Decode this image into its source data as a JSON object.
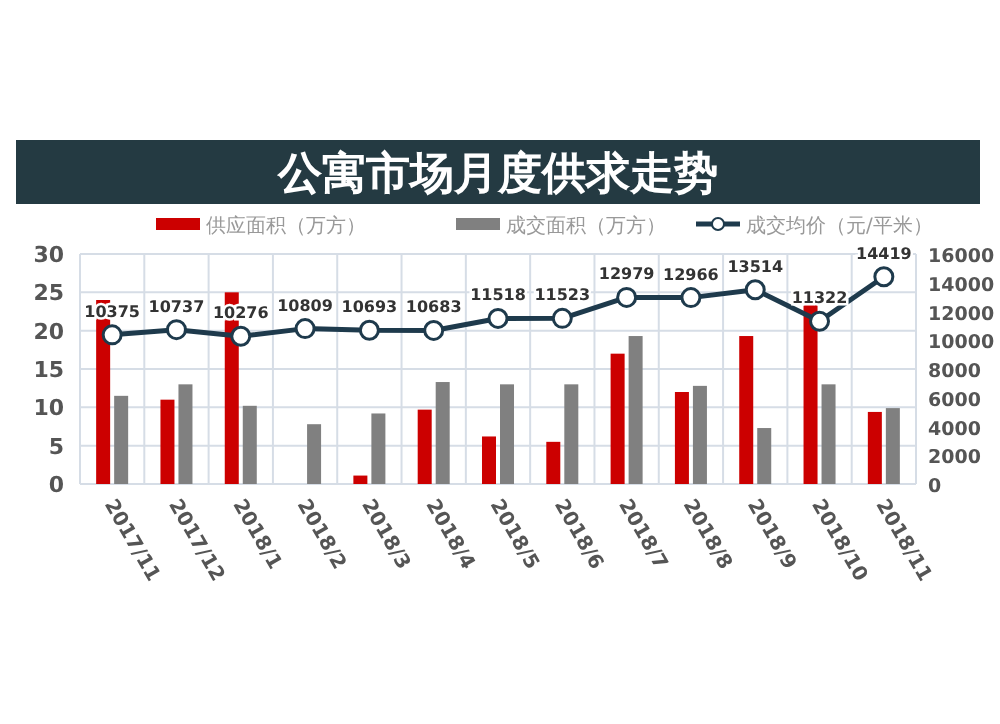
{
  "chart_data": {
    "type": "bar",
    "title": "公寓市场月度供求走势",
    "categories": [
      "2017/11",
      "2017/12",
      "2018/1",
      "2018/2",
      "2018/3",
      "2018/4",
      "2018/5",
      "2018/6",
      "2018/7",
      "2018/8",
      "2018/9",
      "2018/10",
      "2018/11"
    ],
    "series": [
      {
        "name": "供应面积（万方）",
        "color": "#cc0000",
        "values": [
          24,
          11,
          25,
          0,
          1.1,
          9.7,
          6.2,
          5.5,
          17,
          12,
          19.3,
          24,
          9.4
        ]
      },
      {
        "name": "成交面积（万方）",
        "color": "#808080",
        "values": [
          11.5,
          13,
          10.2,
          7.8,
          9.2,
          13.3,
          13,
          13,
          19.3,
          12.8,
          7.3,
          13,
          9.9
        ]
      },
      {
        "name": "成交均价（元/平米）",
        "type": "line",
        "axis": "y2",
        "color": "#1e3a4c",
        "marker": "circle",
        "values": [
          10375,
          10737,
          10276,
          10809,
          10693,
          10683,
          11518,
          11523,
          12979,
          12966,
          13514,
          11322,
          14419
        ],
        "value_labels": [
          "10375",
          "10737",
          "10276",
          "10809",
          "10693",
          "10683",
          "11518",
          "11523",
          "12979",
          "12966",
          "13514",
          "11322",
          "14419"
        ]
      }
    ],
    "ylim": [
      0,
      30
    ],
    "yticks": [
      0,
      5,
      10,
      15,
      20,
      25,
      30
    ],
    "y2lim": [
      0,
      16000
    ],
    "y2ticks": [
      0,
      2000,
      4000,
      6000,
      8000,
      10000,
      12000,
      14000,
      16000
    ],
    "grid": true,
    "legend": "top"
  }
}
